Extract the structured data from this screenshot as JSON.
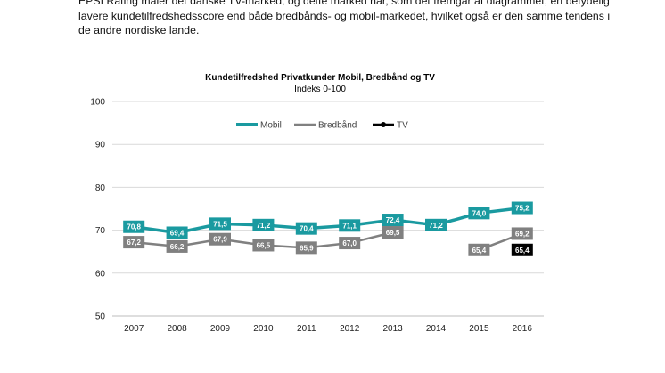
{
  "intro": {
    "lines": [
      "EPSI Rating måler det danske TV-marked, og dette marked har, som det fremgår af diagrammet, en betydelig",
      "lavere kundetilfredshedsscore end både bredbånds- og mobil-markedet, hvilket også er den samme tendens i",
      "de andre nordiske lande."
    ]
  },
  "chart_data": {
    "type": "line",
    "title": "Kundetilfredshed Privatkunder Mobil, Bredbånd og TV",
    "subtitle": "Indeks 0-100",
    "categories": [
      "2007",
      "2008",
      "2009",
      "2010",
      "2011",
      "2012",
      "2013",
      "2014",
      "2015",
      "2016"
    ],
    "ylim": [
      50,
      100
    ],
    "yticks": [
      "50",
      "60",
      "70",
      "80",
      "90",
      "100"
    ],
    "legend_position": "top-center",
    "series": [
      {
        "name": "Mobil",
        "color": "#1a9aa0",
        "values": [
          70.8,
          69.4,
          71.5,
          71.2,
          70.4,
          71.1,
          72.4,
          71.2,
          74.0,
          75.2
        ],
        "labels": [
          "70,8",
          "69,4",
          "71,5",
          "71,2",
          "70,4",
          "71,1",
          "72,4",
          "71,2",
          "74,0",
          "75,2"
        ]
      },
      {
        "name": "Bredbånd",
        "color": "#808080",
        "values": [
          67.2,
          66.2,
          67.9,
          66.5,
          65.9,
          67.0,
          69.5,
          null,
          65.4,
          69.2
        ],
        "labels": [
          "67,2",
          "66,2",
          "67,9",
          "66,5",
          "65,9",
          "67,0",
          "69,5",
          null,
          "65,4",
          "69,2"
        ]
      },
      {
        "name": "TV",
        "color": "#000000",
        "values": [
          null,
          null,
          null,
          null,
          null,
          null,
          null,
          null,
          null,
          65.4
        ],
        "labels": [
          null,
          null,
          null,
          null,
          null,
          null,
          null,
          null,
          null,
          "65,4"
        ]
      }
    ]
  }
}
